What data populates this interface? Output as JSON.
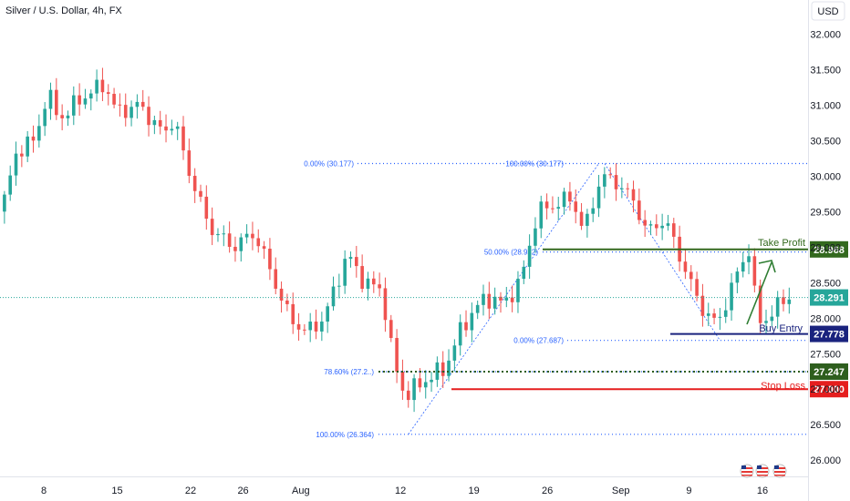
{
  "header": {
    "title": "Silver / U.S. Dollar, 4h, FX"
  },
  "currency_button": {
    "label": "USD"
  },
  "flags": [
    "us-flag-icon",
    "us-flag-icon",
    "us-flag-icon"
  ],
  "colors": {
    "up": "#26a69a",
    "down": "#ef5350",
    "fib": "#2962ff",
    "take_profit": "#33691e",
    "buy_entry": "#1a237e",
    "stop_loss": "#e51e1e",
    "support": "#2e5e1e",
    "last_price": "#26a69a"
  },
  "chart_data": {
    "type": "candlestick",
    "title": "Silver / U.S. Dollar, 4h, FX",
    "y_ticks": [
      "32.000",
      "31.500",
      "31.000",
      "30.500",
      "30.000",
      "29.500",
      "29.000",
      "28.500",
      "28.000",
      "27.500",
      "27.000",
      "26.500",
      "26.000"
    ],
    "y_tick_values": [
      32.0,
      31.5,
      31.0,
      30.5,
      30.0,
      29.5,
      29.0,
      28.5,
      28.0,
      27.5,
      27.0,
      26.5,
      26.0
    ],
    "ylim": [
      25.9,
      32.3
    ],
    "x_ticks": [
      {
        "label": "8",
        "index": 8
      },
      {
        "label": "15",
        "index": 22
      },
      {
        "label": "22",
        "index": 36
      },
      {
        "label": "26",
        "index": 46
      },
      {
        "label": "Aug",
        "index": 57
      },
      {
        "label": "12",
        "index": 76
      },
      {
        "label": "19",
        "index": 90
      },
      {
        "label": "26",
        "index": 104
      },
      {
        "label": "Sep",
        "index": 118
      },
      {
        "label": "9",
        "index": 131
      },
      {
        "label": "16",
        "index": 145
      }
    ],
    "x_range": [
      0,
      153
    ],
    "candles": [],
    "levels": [
      {
        "name": "Take Profit",
        "value": 28.968,
        "label": "28.968"
      },
      {
        "name": "last",
        "value": 28.291,
        "label": "28.291"
      },
      {
        "name": "Buy Entry",
        "value": 27.778,
        "label": "27.778"
      },
      {
        "name": "support",
        "value": 27.247,
        "label": "27.247"
      },
      {
        "name": "Stop Loss",
        "value": 27.0,
        "label": "27.000"
      }
    ],
    "fib_retracements": [
      {
        "label": "0.00% (30.177)",
        "value": 30.177
      },
      {
        "label": "100.00% (30.177)",
        "value": 30.177
      },
      {
        "label": "50.00% (28.932)",
        "value": 28.932
      },
      {
        "label": "0.00% (27.687)",
        "value": 27.687
      },
      {
        "label": "78.60% (27.2..)",
        "value": 27.247
      },
      {
        "label": "100.00% (26.364)",
        "value": 26.364
      }
    ],
    "annotations": {
      "take_profit": "Take Profit",
      "buy_entry": "Buy Entry",
      "stop_loss": "Stop Loss"
    }
  }
}
